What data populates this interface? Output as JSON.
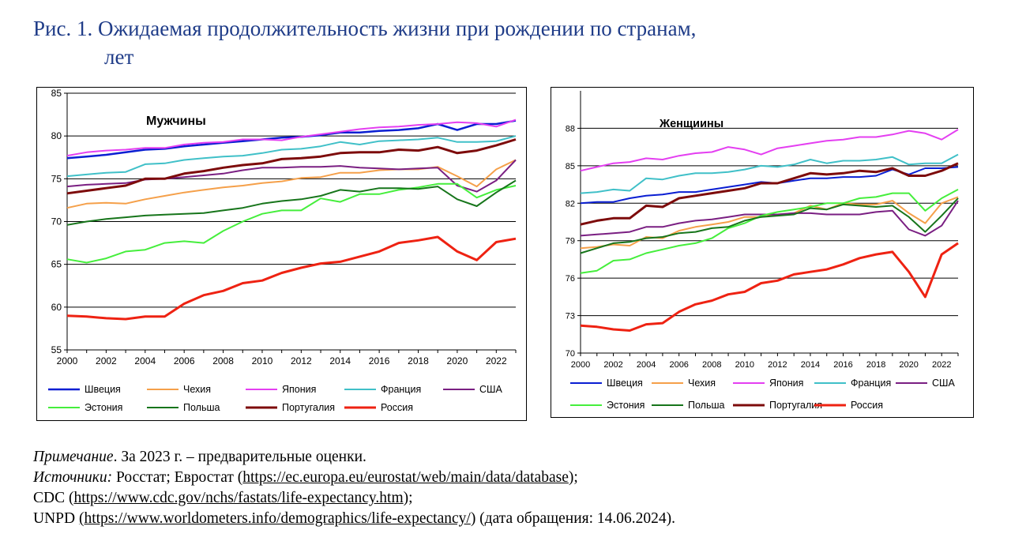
{
  "title": {
    "line1": "Рис. 1. Ожидаемая продолжительность жизни при рождении по странам,",
    "line2": "лет"
  },
  "charts": [
    {
      "type": "line",
      "title": "Мужчины",
      "ylim": [
        55,
        85
      ],
      "yticks": [
        55,
        60,
        65,
        70,
        75,
        80,
        85
      ],
      "xlim": [
        2000,
        2023
      ],
      "xticks": [
        2000,
        2002,
        2004,
        2006,
        2008,
        2010,
        2012,
        2014,
        2016,
        2018,
        2020,
        2022
      ],
      "grid": true,
      "legend_position": "bottom",
      "x": [
        2000,
        2001,
        2002,
        2003,
        2004,
        2005,
        2006,
        2007,
        2008,
        2009,
        2010,
        2011,
        2012,
        2013,
        2014,
        2015,
        2016,
        2017,
        2018,
        2019,
        2020,
        2021,
        2022,
        2023
      ],
      "series": [
        {
          "name": "Швеция",
          "color": "#0a1ed2",
          "width": 2.5,
          "values": [
            77.4,
            77.6,
            77.8,
            78.1,
            78.4,
            78.5,
            78.8,
            79.0,
            79.2,
            79.4,
            79.6,
            79.8,
            79.9,
            80.1,
            80.4,
            80.4,
            80.6,
            80.7,
            80.9,
            81.4,
            80.7,
            81.4,
            81.4,
            81.8
          ]
        },
        {
          "name": "Чехия",
          "color": "#f5a04a",
          "width": 2,
          "values": [
            71.6,
            72.1,
            72.2,
            72.1,
            72.6,
            73.0,
            73.4,
            73.7,
            74.0,
            74.2,
            74.5,
            74.7,
            75.1,
            75.2,
            75.7,
            75.7,
            76.0,
            76.1,
            76.1,
            76.4,
            75.3,
            74.1,
            76.1,
            77.2
          ]
        },
        {
          "name": "Япония",
          "color": "#e43ff1",
          "width": 2,
          "values": [
            77.7,
            78.1,
            78.3,
            78.4,
            78.6,
            78.6,
            79.0,
            79.2,
            79.3,
            79.6,
            79.6,
            79.5,
            79.9,
            80.2,
            80.5,
            80.8,
            81.0,
            81.1,
            81.3,
            81.4,
            81.6,
            81.5,
            81.1,
            81.9
          ]
        },
        {
          "name": "Франция",
          "color": "#40c0c8",
          "width": 2,
          "values": [
            75.3,
            75.5,
            75.7,
            75.8,
            76.7,
            76.8,
            77.2,
            77.4,
            77.6,
            77.7,
            78.0,
            78.4,
            78.5,
            78.8,
            79.3,
            79.0,
            79.4,
            79.5,
            79.6,
            79.8,
            79.3,
            79.3,
            79.4,
            80.0
          ]
        },
        {
          "name": "США",
          "color": "#7a1f82",
          "width": 2,
          "values": [
            74.1,
            74.3,
            74.4,
            74.5,
            74.9,
            75.0,
            75.2,
            75.4,
            75.6,
            76.0,
            76.3,
            76.3,
            76.4,
            76.4,
            76.5,
            76.3,
            76.2,
            76.1,
            76.2,
            76.3,
            74.2,
            73.5,
            74.8,
            77.2
          ]
        },
        {
          "name": "Эстония",
          "color": "#45ee3c",
          "width": 2,
          "values": [
            65.6,
            65.2,
            65.7,
            66.5,
            66.7,
            67.5,
            67.7,
            67.5,
            68.9,
            70.0,
            70.9,
            71.3,
            71.3,
            72.7,
            72.3,
            73.2,
            73.2,
            73.7,
            74.0,
            74.4,
            74.4,
            72.8,
            73.7,
            74.2
          ]
        },
        {
          "name": "Польша",
          "color": "#17751b",
          "width": 2,
          "values": [
            69.6,
            70.0,
            70.3,
            70.5,
            70.7,
            70.8,
            70.9,
            71.0,
            71.3,
            71.6,
            72.1,
            72.4,
            72.6,
            73.0,
            73.7,
            73.5,
            73.9,
            73.9,
            73.8,
            74.1,
            72.6,
            71.8,
            73.4,
            74.8
          ]
        },
        {
          "name": "Португалия",
          "color": "#7d0b0b",
          "width": 3,
          "values": [
            73.3,
            73.6,
            73.9,
            74.2,
            75.0,
            75.0,
            75.6,
            75.9,
            76.3,
            76.6,
            76.8,
            77.3,
            77.4,
            77.6,
            78.0,
            78.1,
            78.1,
            78.4,
            78.3,
            78.7,
            78.0,
            78.3,
            78.9,
            79.6
          ]
        },
        {
          "name": "Россия",
          "color": "#ee2212",
          "width": 3,
          "values": [
            59.0,
            58.9,
            58.7,
            58.6,
            58.9,
            58.9,
            60.4,
            61.4,
            61.9,
            62.8,
            63.1,
            64.0,
            64.6,
            65.1,
            65.3,
            65.9,
            66.5,
            67.5,
            67.8,
            68.2,
            66.5,
            65.5,
            67.6,
            68.0
          ]
        }
      ]
    },
    {
      "type": "line",
      "title": "Женщиины",
      "ylim": [
        70,
        91
      ],
      "yticks": [
        70,
        73,
        76,
        79,
        82,
        85,
        88
      ],
      "xlim": [
        2000,
        2023
      ],
      "xticks": [
        2000,
        2002,
        2004,
        2006,
        2008,
        2010,
        2012,
        2014,
        2016,
        2018,
        2020,
        2022
      ],
      "grid": true,
      "legend_position": "bottom",
      "x": [
        2000,
        2001,
        2002,
        2003,
        2004,
        2005,
        2006,
        2007,
        2008,
        2009,
        2010,
        2011,
        2012,
        2013,
        2014,
        2015,
        2016,
        2017,
        2018,
        2019,
        2020,
        2021,
        2022,
        2023
      ],
      "series": [
        {
          "name": "Швеция",
          "color": "#0a1ed2",
          "width": 2,
          "values": [
            82.0,
            82.1,
            82.1,
            82.4,
            82.6,
            82.7,
            82.9,
            82.9,
            83.1,
            83.3,
            83.5,
            83.7,
            83.6,
            83.8,
            84.0,
            84.0,
            84.1,
            84.1,
            84.2,
            84.7,
            84.3,
            84.8,
            84.8,
            84.9
          ]
        },
        {
          "name": "Чехия",
          "color": "#f5a04a",
          "width": 2,
          "values": [
            78.4,
            78.5,
            78.7,
            78.6,
            79.3,
            79.2,
            79.8,
            80.1,
            80.3,
            80.5,
            80.9,
            80.9,
            81.1,
            81.2,
            81.8,
            81.5,
            82.0,
            81.9,
            81.9,
            82.2,
            81.2,
            80.4,
            82.0,
            82.5
          ]
        },
        {
          "name": "Япония",
          "color": "#e43ff1",
          "width": 2,
          "values": [
            84.6,
            84.9,
            85.2,
            85.3,
            85.6,
            85.5,
            85.8,
            86.0,
            86.1,
            86.5,
            86.3,
            85.9,
            86.4,
            86.6,
            86.8,
            87.0,
            87.1,
            87.3,
            87.3,
            87.5,
            87.8,
            87.6,
            87.1,
            87.9
          ]
        },
        {
          "name": "Франция",
          "color": "#40c0c8",
          "width": 2,
          "values": [
            82.8,
            82.9,
            83.1,
            83.0,
            84.0,
            83.9,
            84.2,
            84.4,
            84.4,
            84.5,
            84.7,
            85.0,
            84.9,
            85.1,
            85.5,
            85.2,
            85.4,
            85.4,
            85.5,
            85.7,
            85.1,
            85.2,
            85.2,
            85.9
          ]
        },
        {
          "name": "США",
          "color": "#7a1f82",
          "width": 2,
          "values": [
            79.4,
            79.5,
            79.6,
            79.7,
            80.1,
            80.1,
            80.4,
            80.6,
            80.7,
            80.9,
            81.1,
            81.1,
            81.1,
            81.2,
            81.2,
            81.1,
            81.1,
            81.1,
            81.3,
            81.4,
            79.9,
            79.4,
            80.2,
            82.2
          ]
        },
        {
          "name": "Эстония",
          "color": "#45ee3c",
          "width": 2,
          "values": [
            76.4,
            76.6,
            77.4,
            77.5,
            78.0,
            78.3,
            78.6,
            78.8,
            79.2,
            80.0,
            80.4,
            81.0,
            81.3,
            81.5,
            81.7,
            82.0,
            82.0,
            82.4,
            82.5,
            82.8,
            82.8,
            81.4,
            82.4,
            83.1
          ]
        },
        {
          "name": "Польша",
          "color": "#17751b",
          "width": 2,
          "values": [
            78.0,
            78.4,
            78.8,
            78.9,
            79.2,
            79.3,
            79.6,
            79.7,
            80.0,
            80.1,
            80.6,
            80.9,
            81.0,
            81.1,
            81.6,
            81.5,
            81.9,
            81.8,
            81.7,
            81.8,
            80.9,
            79.7,
            81.0,
            82.4
          ]
        },
        {
          "name": "Португалия",
          "color": "#7d0b0b",
          "width": 3,
          "values": [
            80.3,
            80.6,
            80.8,
            80.8,
            81.8,
            81.7,
            82.4,
            82.6,
            82.8,
            83.0,
            83.2,
            83.6,
            83.6,
            84.0,
            84.4,
            84.3,
            84.4,
            84.6,
            84.5,
            84.8,
            84.2,
            84.2,
            84.6,
            85.2
          ]
        },
        {
          "name": "Россия",
          "color": "#ee2212",
          "width": 3,
          "values": [
            72.2,
            72.1,
            71.9,
            71.8,
            72.3,
            72.4,
            73.3,
            73.9,
            74.2,
            74.7,
            74.9,
            75.6,
            75.8,
            76.3,
            76.5,
            76.7,
            77.1,
            77.6,
            77.9,
            78.1,
            76.5,
            74.5,
            77.9,
            78.8
          ]
        }
      ]
    }
  ],
  "notes": {
    "note_label": "Примечание",
    "note_text": ". За 2023 г. – предварительные оценки.",
    "sources_label": "Источники:",
    "sources_text": " Росстат; Евростат (",
    "link_eurostat": "https://ec.europa.eu/eurostat/web/main/data/database",
    "after_eurostat": ");",
    "cdc_prefix": "CDC (",
    "link_cdc": "https://www.cdc.gov/nchs/fastats/life-expectancy.htm",
    "after_cdc": ");",
    "unpd_prefix": "UNPD ",
    "link_unpd": "(https://www.worldometers.info/demographics/life-expectancy/",
    "after_unpd": ") (дата обращения: 14.06.2024)."
  }
}
